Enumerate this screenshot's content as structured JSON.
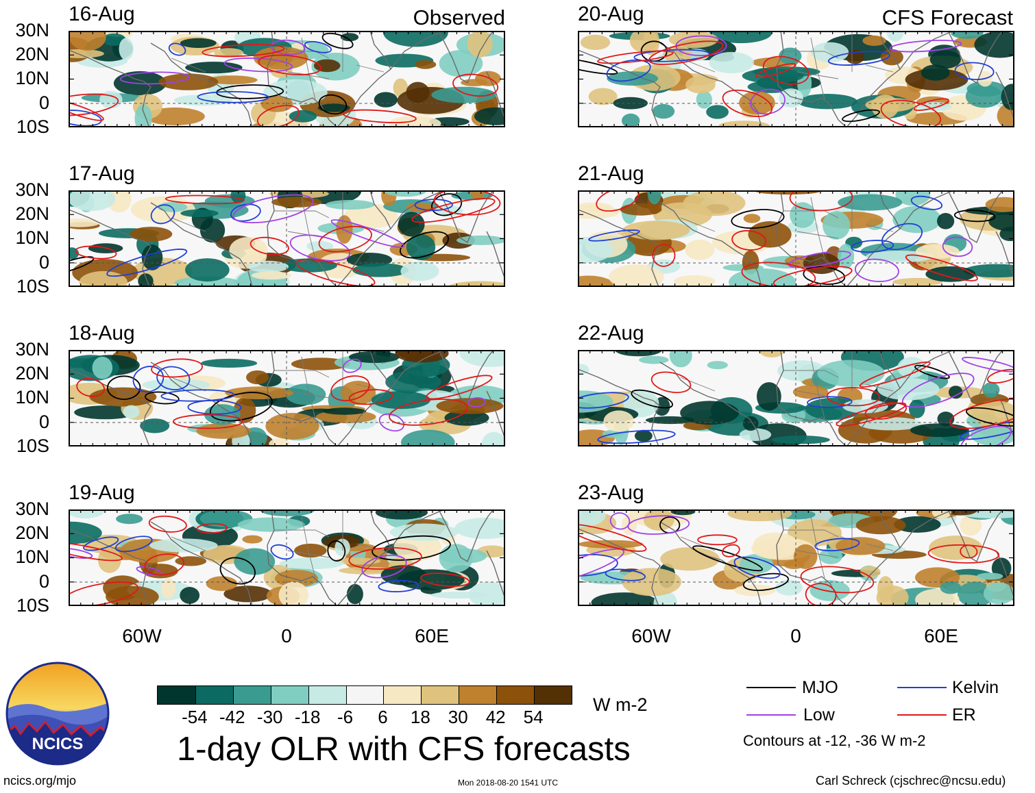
{
  "columns": [
    {
      "heading": "Observed",
      "dates": [
        "16-Aug",
        "17-Aug",
        "18-Aug",
        "19-Aug"
      ]
    },
    {
      "heading": "CFS Forecast",
      "dates": [
        "20-Aug",
        "21-Aug",
        "22-Aug",
        "23-Aug"
      ]
    }
  ],
  "lat_labels": [
    "30N",
    "20N",
    "10N",
    "0",
    "10S"
  ],
  "lon_labels": [
    "60W",
    "0",
    "60E"
  ],
  "colorbar": {
    "colors": [
      "#01362e",
      "#0b6b62",
      "#3a9b91",
      "#80cdc1",
      "#c7eae5",
      "#f5f5f5",
      "#f6e8c3",
      "#dfc27d",
      "#bf812d",
      "#8c510a",
      "#543005"
    ],
    "labels": [
      "-54",
      "-42",
      "-30",
      "-18",
      "-6",
      "6",
      "18",
      "30",
      "42",
      "54"
    ],
    "units": "W m-2"
  },
  "title": "1-day OLR with CFS forecasts",
  "legend": {
    "items": [
      {
        "label": "MJO",
        "color": "#000000"
      },
      {
        "label": "Kelvin",
        "color": "#1f3fd6"
      },
      {
        "label": "Low",
        "color": "#a040e8"
      },
      {
        "label": "ER",
        "color": "#e01818"
      }
    ],
    "note": "Contours at -12, -36 W m-2"
  },
  "logo": {
    "text": "NCICS"
  },
  "footer": {
    "url": "ncics.org/mjo",
    "timestamp": "Mon 2018-08-20 1541 UTC",
    "credit": "Carl Schreck (cjschrec@ncsu.edu)"
  }
}
